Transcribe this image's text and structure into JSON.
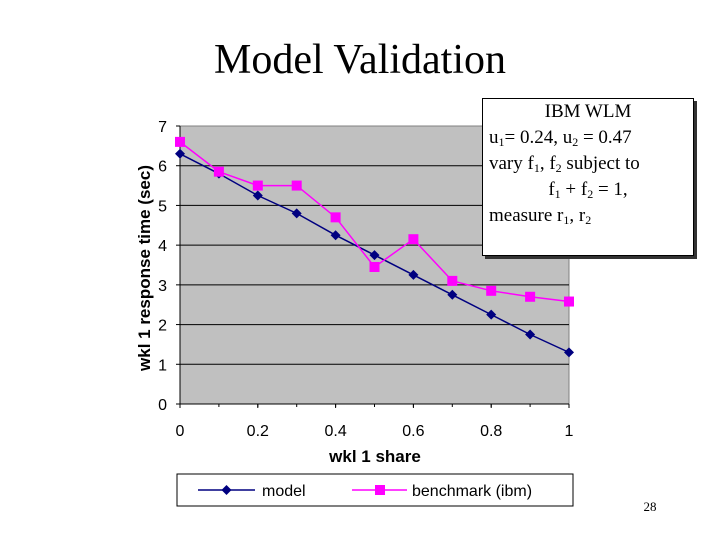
{
  "slide": {
    "title": "Model Validation",
    "page_number": "28"
  },
  "annotation": {
    "line1": "IBM WLM",
    "u1": "u",
    "u1_sub": "1",
    "u1_val": "= 0.24, u",
    "u2_sub": "2",
    "u2_val": " = 0.47",
    "vary": "vary f",
    "f1_sub": "1",
    "vary_mid": ", f",
    "f2_sub": "2",
    "vary_end": " subject to",
    "sum_f": "f",
    "sum_f1_sub": "1",
    "sum_plus": " + f",
    "sum_f2_sub": "2",
    "sum_end": " = 1,",
    "measure": "measure r",
    "r1_sub": "1",
    "measure_mid": ", r",
    "r2_sub": "2"
  },
  "colors": {
    "plot_bg": "#c0c0c0",
    "model": "#000080",
    "benchmark": "#ff00ff"
  },
  "chart_data": {
    "type": "line",
    "xlabel": "wkl 1 share",
    "ylabel": "wkl 1 response time (sec)",
    "xlim": [
      0,
      1
    ],
    "ylim": [
      0,
      7
    ],
    "x_ticks": [
      "0",
      "0.2",
      "0.4",
      "0.6",
      "0.8",
      "1"
    ],
    "y_ticks": [
      "0",
      "1",
      "2",
      "3",
      "4",
      "5",
      "6",
      "7"
    ],
    "grid": "horizontal",
    "legend_position": "bottom",
    "x": [
      0,
      0.1,
      0.2,
      0.3,
      0.4,
      0.5,
      0.6,
      0.7,
      0.8,
      0.9,
      1.0
    ],
    "series": [
      {
        "name": "model",
        "marker": "diamond",
        "values": [
          6.3,
          5.8,
          5.25,
          4.8,
          4.25,
          3.75,
          3.25,
          2.75,
          2.25,
          1.75,
          1.3
        ]
      },
      {
        "name": "benchmark (ibm)",
        "marker": "square",
        "values": [
          6.6,
          5.85,
          5.5,
          5.5,
          4.7,
          3.45,
          4.15,
          3.1,
          2.85,
          2.7,
          2.58
        ]
      }
    ]
  }
}
